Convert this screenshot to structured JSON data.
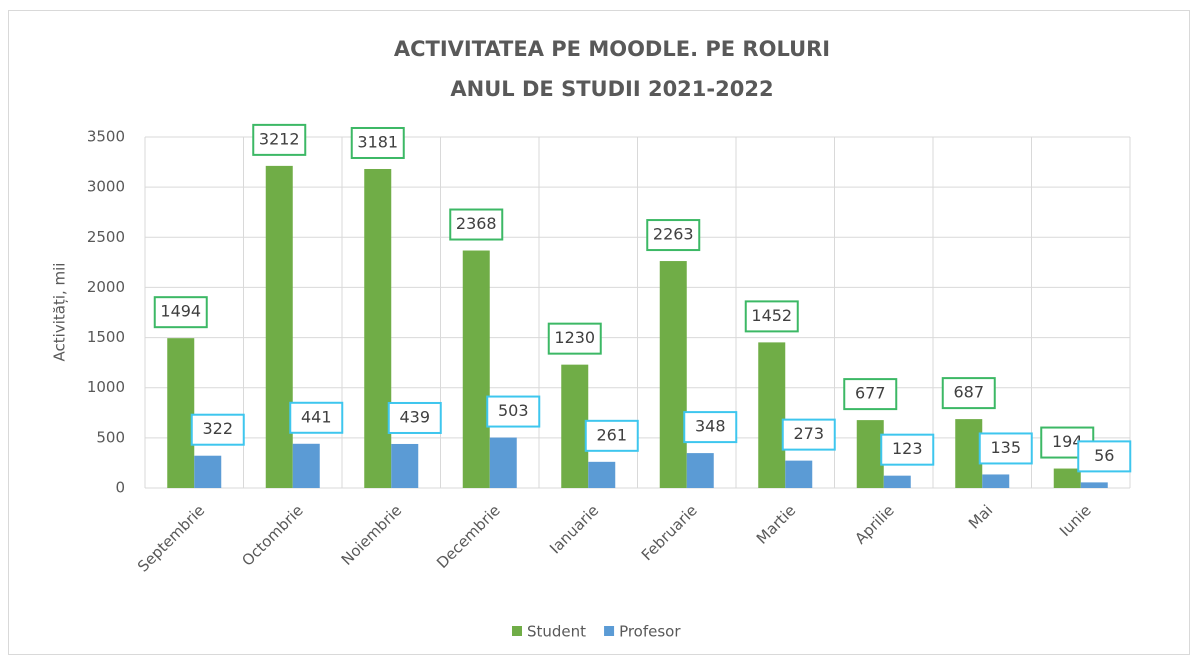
{
  "chart_data": {
    "type": "bar",
    "title": [
      "ACTIVITATEA PE MOODLE. PE ROLURI",
      "ANUL DE STUDII 2021-2022"
    ],
    "y_label": "Activități, mii",
    "categories": [
      "Septembrie",
      "Octombrie",
      "Noiembrie",
      "Decembrie",
      "Ianuarie",
      "Februarie",
      "Martie",
      "Aprilie",
      "Mai",
      "Iunie"
    ],
    "series": [
      {
        "name": "Student",
        "color": "#70ad47",
        "label_border": "#3cb865",
        "values": [
          1494,
          3212,
          3181,
          2368,
          1230,
          2263,
          1452,
          677,
          687,
          194
        ]
      },
      {
        "name": "Profesor",
        "color": "#5b9bd5",
        "label_border": "#3ec6ee",
        "values": [
          322,
          441,
          439,
          503,
          261,
          348,
          273,
          123,
          135,
          56
        ]
      }
    ],
    "ylim": [
      0,
      3500
    ],
    "yticks": [
      0,
      500,
      1000,
      1500,
      2000,
      2500,
      3000,
      3500
    ],
    "grid": true,
    "legend": "bottom"
  }
}
